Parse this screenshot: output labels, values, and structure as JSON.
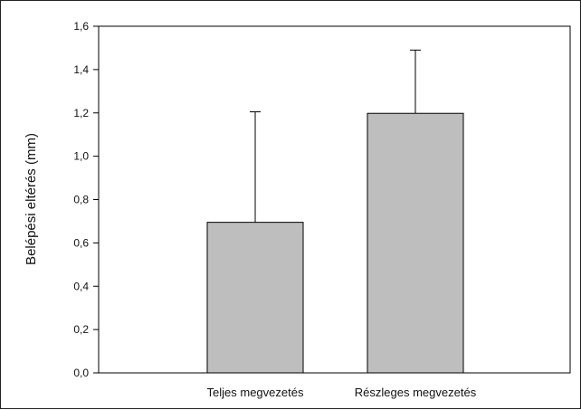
{
  "chart_data": {
    "type": "bar",
    "title": "",
    "xlabel": "",
    "ylabel": "Belépési eltérés (mm)",
    "categories": [
      "Teljes megvezetés",
      "Részleges megvezetés"
    ],
    "values": [
      0.695,
      1.198
    ],
    "error_bars_upper": [
      1.205,
      1.49
    ],
    "ylim": [
      0,
      1.6
    ],
    "yticks": [
      0.0,
      0.2,
      0.4,
      0.6,
      0.8,
      1.0,
      1.2,
      1.4,
      1.6
    ],
    "ytick_labels": [
      "0,0",
      "0,2",
      "0,4",
      "0,6",
      "0,8",
      "1,0",
      "1,2",
      "1,4",
      "1,6"
    ],
    "grid": false,
    "bar_color": "#bebebe",
    "edge_color": "#000000"
  }
}
